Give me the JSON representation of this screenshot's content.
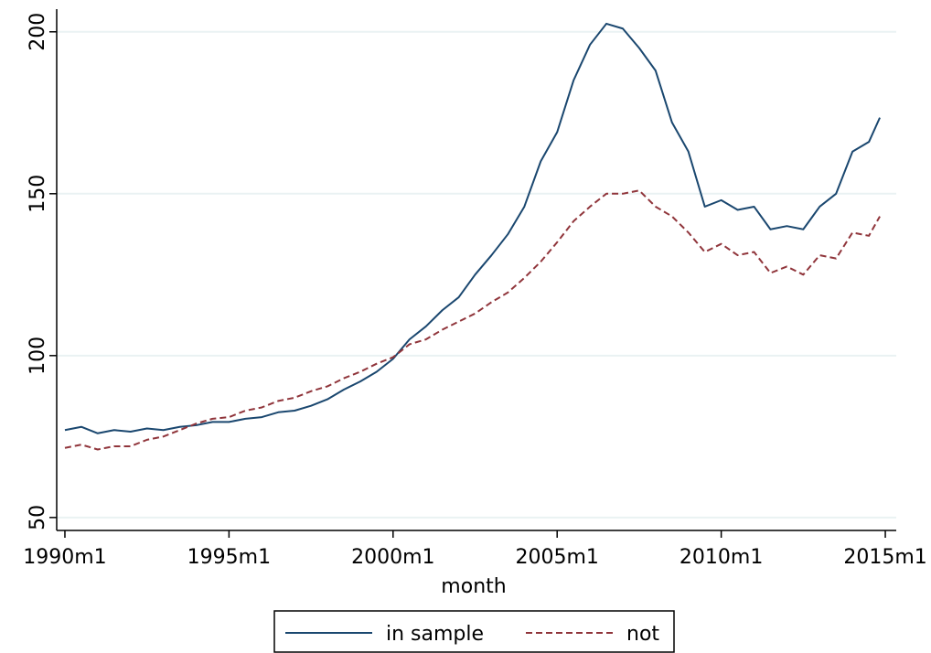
{
  "chart_data": {
    "type": "line",
    "x_label": "month",
    "x": [
      "1990m1",
      "1990m7",
      "1991m1",
      "1991m7",
      "1992m1",
      "1992m7",
      "1993m1",
      "1993m7",
      "1994m1",
      "1994m7",
      "1995m1",
      "1995m7",
      "1996m1",
      "1996m7",
      "1997m1",
      "1997m7",
      "1998m1",
      "1998m7",
      "1999m1",
      "1999m7",
      "2000m1",
      "2000m7",
      "2001m1",
      "2001m7",
      "2002m1",
      "2002m7",
      "2003m1",
      "2003m7",
      "2004m1",
      "2004m7",
      "2005m1",
      "2005m7",
      "2006m1",
      "2006m7",
      "2007m1",
      "2007m7",
      "2008m1",
      "2008m7",
      "2009m1",
      "2009m7",
      "2010m1",
      "2010m7",
      "2011m1",
      "2011m7",
      "2012m1",
      "2012m7",
      "2013m1",
      "2013m7",
      "2014m1",
      "2014m7",
      "2014m11"
    ],
    "series": [
      {
        "name": "in sample",
        "color": "#1a476f",
        "dash": false,
        "values": [
          77,
          78,
          76,
          77,
          76.5,
          77.5,
          77,
          78,
          78.5,
          79.5,
          79.5,
          80.5,
          81,
          82.5,
          83,
          84.5,
          86.5,
          89.5,
          92,
          95,
          99,
          105,
          109,
          114,
          118,
          125,
          131,
          137.5,
          146,
          160,
          169,
          185,
          196,
          202.5,
          201,
          195,
          188,
          172,
          163,
          146,
          148,
          145,
          146,
          139,
          140,
          139,
          146,
          150,
          163,
          166,
          173.5
        ]
      },
      {
        "name": "not",
        "color": "#90353b",
        "dash": true,
        "values": [
          71.5,
          72.5,
          71,
          72,
          72,
          74,
          75,
          77,
          79,
          80.5,
          81,
          83,
          84,
          86,
          87,
          89,
          90.5,
          93,
          95,
          97.5,
          99.5,
          103.5,
          105,
          108,
          110.5,
          113,
          116.5,
          119.5,
          124,
          129,
          135,
          141.5,
          146,
          150,
          150,
          151,
          146,
          143,
          138,
          132,
          134.5,
          131,
          132,
          125.5,
          127.5,
          125,
          131,
          130,
          138,
          137,
          143
        ]
      }
    ],
    "xlim": [
      "1989m10",
      "2015m5"
    ],
    "xticks": [
      "1990m1",
      "1995m1",
      "2000m1",
      "2005m1",
      "2010m1",
      "2015m1"
    ],
    "ylim": [
      46,
      207
    ],
    "yticks": [
      50,
      100,
      150,
      200
    ],
    "grid": true
  }
}
